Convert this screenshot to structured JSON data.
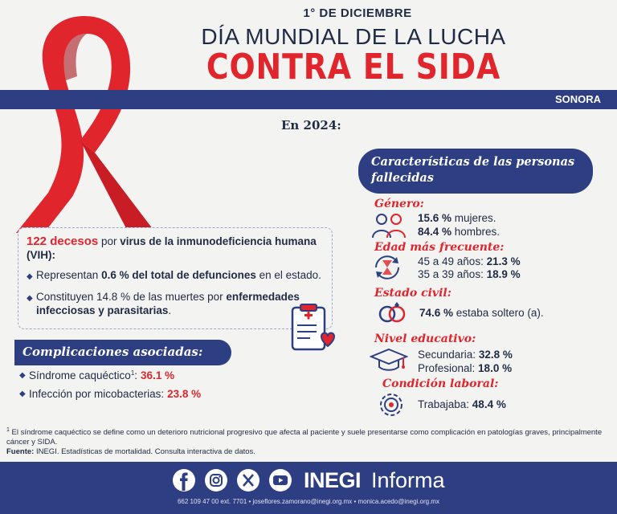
{
  "header": {
    "date": "1° DE DICIEMBRE",
    "title_line1": "DÍA MUNDIAL DE LA LUCHA",
    "title_line2": "CONTRA EL SIDA",
    "region": "SONORA"
  },
  "year_label": "En 2024:",
  "deaths_box": {
    "count": "122 decesos",
    "text_pre": " por ",
    "cause_bold": "virus de la inmunodeficiencia humana (VIH):",
    "bullet1_pre": "Representan ",
    "bullet1_bold": "0.6 % del total de defunciones",
    "bullet1_post": " en el estado.",
    "bullet2_pre": "Constituyen 14.8 % de las muertes por ",
    "bullet2_bold": "enfermedades infecciosas y parasitarias",
    "bullet2_post": "."
  },
  "complications": {
    "title": "Complicaciones asociadas:",
    "item1_label": "Síndrome caquéctico",
    "item1_sup": "1",
    "item1_colon": ":",
    "item1_value": "36.1 %",
    "item2_label": "Infección por micobacterias:",
    "item2_value": "23.8 %"
  },
  "characteristics": {
    "title_line1": "Características de las personas",
    "title_line2": "fallecidas",
    "genero": {
      "label": "Género:",
      "line1_bold": "15.6 %",
      "line1_rest": " mujeres.",
      "line2_bold": "84.4 %",
      "line2_rest": " hombres."
    },
    "edad": {
      "label": "Edad más frecuente:",
      "line1_rest": "45 a 49 años: ",
      "line1_bold": "21.3 %",
      "line2_rest": "35 a 39 años: ",
      "line2_bold": "18.9 %"
    },
    "civil": {
      "label": "Estado civil:",
      "line1_bold": "74.6 %",
      "line1_rest": " estaba soltero (a)."
    },
    "educativo": {
      "label": "Nivel educativo:",
      "line1_rest": "Secundaria: ",
      "line1_bold": "32.8 %",
      "line2_rest": "Profesional: ",
      "line2_bold": "18.0 %"
    },
    "laboral": {
      "label": "Condición laboral:",
      "line1_rest": "Trabajaba: ",
      "line1_bold": "48.4 %"
    }
  },
  "footnote": {
    "sup": "1",
    "text": " El síndrome caquéctico se define como un deterioro nutricional progresivo que afecta al paciente y suele presentarse como complicación en patologías graves, principalmente cáncer y SIDA.",
    "source_label": "Fuente:",
    "source_text": " INEGI. Estadísticas de mortalidad. Consulta interactiva de datos."
  },
  "footer": {
    "brand_bold": "INEGI",
    "brand_rest": "Informa",
    "contact": "662 109 47 00 ext. 7701 • joseflores.zamorano@inegi.org.mx • monica.acedo@inegi.org.mx"
  },
  "colors": {
    "accent_red": "#e0252d",
    "navy": "#2e3e82",
    "background": "#f3f3f1"
  },
  "icons": [
    "red-ribbon-icon",
    "clipboard-medical-icon",
    "people-icon",
    "hourglass-cycle-icon",
    "rings-icon",
    "graduation-cap-icon",
    "gear-icon",
    "facebook-icon",
    "instagram-icon",
    "x-icon",
    "youtube-icon"
  ]
}
